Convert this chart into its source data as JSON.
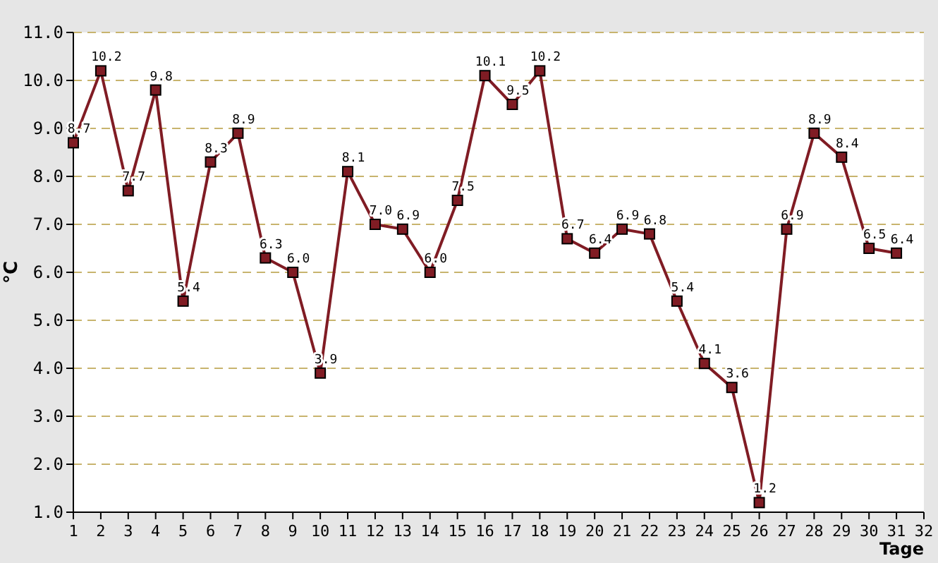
{
  "chart_data": {
    "type": "line",
    "xlabel": "Tage",
    "ylabel": "°C",
    "x": [
      1,
      2,
      3,
      4,
      5,
      6,
      7,
      8,
      9,
      10,
      11,
      12,
      13,
      14,
      15,
      16,
      17,
      18,
      19,
      20,
      21,
      22,
      23,
      24,
      25,
      26,
      27,
      28,
      29,
      30,
      31
    ],
    "series": [
      {
        "color": "#801c24",
        "values": [
          8.7,
          10.2,
          7.7,
          9.8,
          5.4,
          8.3,
          8.9,
          6.3,
          6.0,
          3.9,
          8.1,
          7.0,
          6.9,
          6.0,
          7.5,
          10.1,
          9.5,
          10.2,
          6.7,
          6.4,
          6.9,
          6.8,
          5.4,
          4.1,
          3.6,
          1.2,
          6.9,
          8.9,
          8.4,
          6.5,
          6.4
        ],
        "value_labels": [
          "8.7",
          "10.2",
          "7.7",
          "9.8",
          "5.4",
          "8.3",
          "8.9",
          "6.3",
          "6.0",
          "3.9",
          "8.1",
          "7.0",
          "6.9",
          "6.0",
          "7.5",
          "10.1",
          "9.5",
          "10.2",
          "6.7",
          "6.4",
          "6.9",
          "6.8",
          "5.4",
          "4.1",
          "3.6",
          "1.2",
          "6.9",
          "8.9",
          "8.4",
          "6.5",
          "6.4"
        ]
      }
    ],
    "xlim": [
      1,
      32
    ],
    "xticks": [
      1,
      2,
      3,
      4,
      5,
      6,
      7,
      8,
      9,
      10,
      11,
      12,
      13,
      14,
      15,
      16,
      17,
      18,
      19,
      20,
      21,
      22,
      23,
      24,
      25,
      26,
      27,
      28,
      29,
      30,
      31,
      32
    ],
    "ylim": [
      1,
      11
    ],
    "yticks": [
      {
        "value": 1,
        "label": "1.0"
      },
      {
        "value": 2,
        "label": "2.0"
      },
      {
        "value": 3,
        "label": "3.0"
      },
      {
        "value": 4,
        "label": "4.0"
      },
      {
        "value": 5,
        "label": "5.0"
      },
      {
        "value": 6,
        "label": "6.0"
      },
      {
        "value": 7,
        "label": "7.0"
      },
      {
        "value": 8,
        "label": "8.0"
      },
      {
        "value": 9,
        "label": "9.0"
      },
      {
        "value": 10,
        "label": "10.0"
      },
      {
        "value": 11,
        "label": "11.0"
      }
    ],
    "grid": "y",
    "marker": "square",
    "line_style": "solid"
  }
}
